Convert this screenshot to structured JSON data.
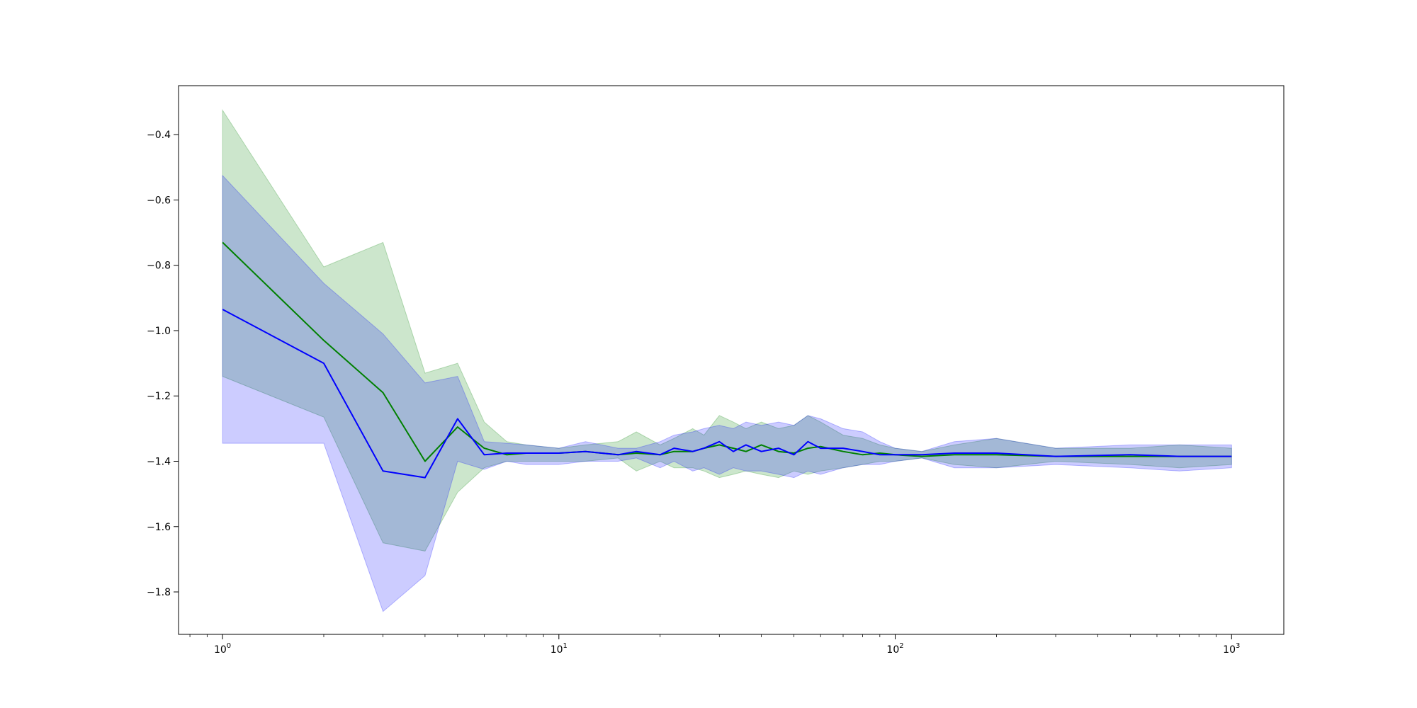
{
  "chart_data": {
    "type": "line",
    "title": "",
    "xlabel": "",
    "ylabel": "",
    "x_scale": "log",
    "xlim": [
      0.74,
      1430
    ],
    "ylim": [
      -1.93,
      -0.25
    ],
    "grid": false,
    "legend": "none",
    "x_ticks": [
      {
        "value": 1,
        "base": "10",
        "exp": "0"
      },
      {
        "value": 10,
        "base": "10",
        "exp": "1"
      },
      {
        "value": 100,
        "base": "10",
        "exp": "2"
      },
      {
        "value": 1000,
        "base": "10",
        "exp": "3"
      }
    ],
    "y_ticks": [
      {
        "value": -0.4,
        "label": "−0.4"
      },
      {
        "value": -0.6,
        "label": "−0.6"
      },
      {
        "value": -0.8,
        "label": "−0.8"
      },
      {
        "value": -1.0,
        "label": "−1.0"
      },
      {
        "value": -1.2,
        "label": "−1.2"
      },
      {
        "value": -1.4,
        "label": "−1.4"
      },
      {
        "value": -1.6,
        "label": "−1.6"
      },
      {
        "value": -1.8,
        "label": "−1.8"
      }
    ],
    "series": [
      {
        "color": "#008000",
        "band_color": "#008000",
        "band_opacity": 0.2,
        "x": [
          1,
          2,
          3,
          4,
          5,
          6,
          7,
          8,
          10,
          12,
          15,
          17,
          20,
          22,
          25,
          27,
          30,
          33,
          36,
          40,
          45,
          50,
          55,
          60,
          70,
          80,
          90,
          100,
          120,
          150,
          200,
          300,
          500,
          700,
          1000
        ],
        "mean": [
          -0.73,
          -1.03,
          -1.19,
          -1.4,
          -1.295,
          -1.36,
          -1.38,
          -1.375,
          -1.375,
          -1.37,
          -1.38,
          -1.375,
          -1.38,
          -1.37,
          -1.37,
          -1.36,
          -1.35,
          -1.36,
          -1.37,
          -1.35,
          -1.37,
          -1.375,
          -1.36,
          -1.355,
          -1.37,
          -1.38,
          -1.375,
          -1.38,
          -1.385,
          -1.38,
          -1.38,
          -1.385,
          -1.385,
          -1.385,
          -1.385
        ],
        "upper": [
          -0.325,
          -0.805,
          -0.73,
          -1.13,
          -1.1,
          -1.28,
          -1.34,
          -1.35,
          -1.36,
          -1.35,
          -1.34,
          -1.31,
          -1.35,
          -1.33,
          -1.3,
          -1.32,
          -1.26,
          -1.28,
          -1.3,
          -1.28,
          -1.3,
          -1.29,
          -1.26,
          -1.28,
          -1.32,
          -1.33,
          -1.35,
          -1.36,
          -1.37,
          -1.35,
          -1.33,
          -1.36,
          -1.36,
          -1.35,
          -1.36
        ],
        "lower": [
          -1.14,
          -1.265,
          -1.65,
          -1.675,
          -1.495,
          -1.42,
          -1.4,
          -1.4,
          -1.4,
          -1.4,
          -1.39,
          -1.43,
          -1.4,
          -1.42,
          -1.42,
          -1.43,
          -1.45,
          -1.44,
          -1.43,
          -1.44,
          -1.45,
          -1.43,
          -1.44,
          -1.43,
          -1.42,
          -1.41,
          -1.4,
          -1.4,
          -1.39,
          -1.41,
          -1.42,
          -1.4,
          -1.41,
          -1.42,
          -1.41
        ]
      },
      {
        "color": "#0000ff",
        "band_color": "#0000ff",
        "band_opacity": 0.2,
        "x": [
          1,
          2,
          3,
          4,
          5,
          6,
          7,
          8,
          10,
          12,
          15,
          17,
          20,
          22,
          25,
          27,
          30,
          33,
          36,
          40,
          45,
          50,
          55,
          60,
          70,
          80,
          90,
          100,
          120,
          150,
          200,
          300,
          500,
          700,
          1000
        ],
        "mean": [
          -0.935,
          -1.1,
          -1.43,
          -1.45,
          -1.27,
          -1.38,
          -1.375,
          -1.375,
          -1.375,
          -1.37,
          -1.38,
          -1.37,
          -1.38,
          -1.36,
          -1.37,
          -1.36,
          -1.34,
          -1.37,
          -1.35,
          -1.37,
          -1.36,
          -1.38,
          -1.34,
          -1.36,
          -1.36,
          -1.37,
          -1.38,
          -1.38,
          -1.38,
          -1.375,
          -1.375,
          -1.385,
          -1.38,
          -1.385,
          -1.385
        ],
        "upper": [
          -0.525,
          -0.855,
          -1.01,
          -1.16,
          -1.14,
          -1.34,
          -1.345,
          -1.35,
          -1.36,
          -1.34,
          -1.36,
          -1.36,
          -1.34,
          -1.32,
          -1.31,
          -1.3,
          -1.29,
          -1.3,
          -1.28,
          -1.29,
          -1.28,
          -1.29,
          -1.26,
          -1.27,
          -1.3,
          -1.31,
          -1.34,
          -1.36,
          -1.37,
          -1.34,
          -1.33,
          -1.36,
          -1.35,
          -1.35,
          -1.35
        ],
        "lower": [
          -1.345,
          -1.345,
          -1.86,
          -1.75,
          -1.4,
          -1.425,
          -1.4,
          -1.41,
          -1.41,
          -1.4,
          -1.4,
          -1.39,
          -1.42,
          -1.4,
          -1.43,
          -1.42,
          -1.44,
          -1.42,
          -1.43,
          -1.43,
          -1.44,
          -1.45,
          -1.43,
          -1.44,
          -1.42,
          -1.41,
          -1.41,
          -1.4,
          -1.39,
          -1.42,
          -1.42,
          -1.41,
          -1.42,
          -1.43,
          -1.42
        ]
      }
    ]
  }
}
